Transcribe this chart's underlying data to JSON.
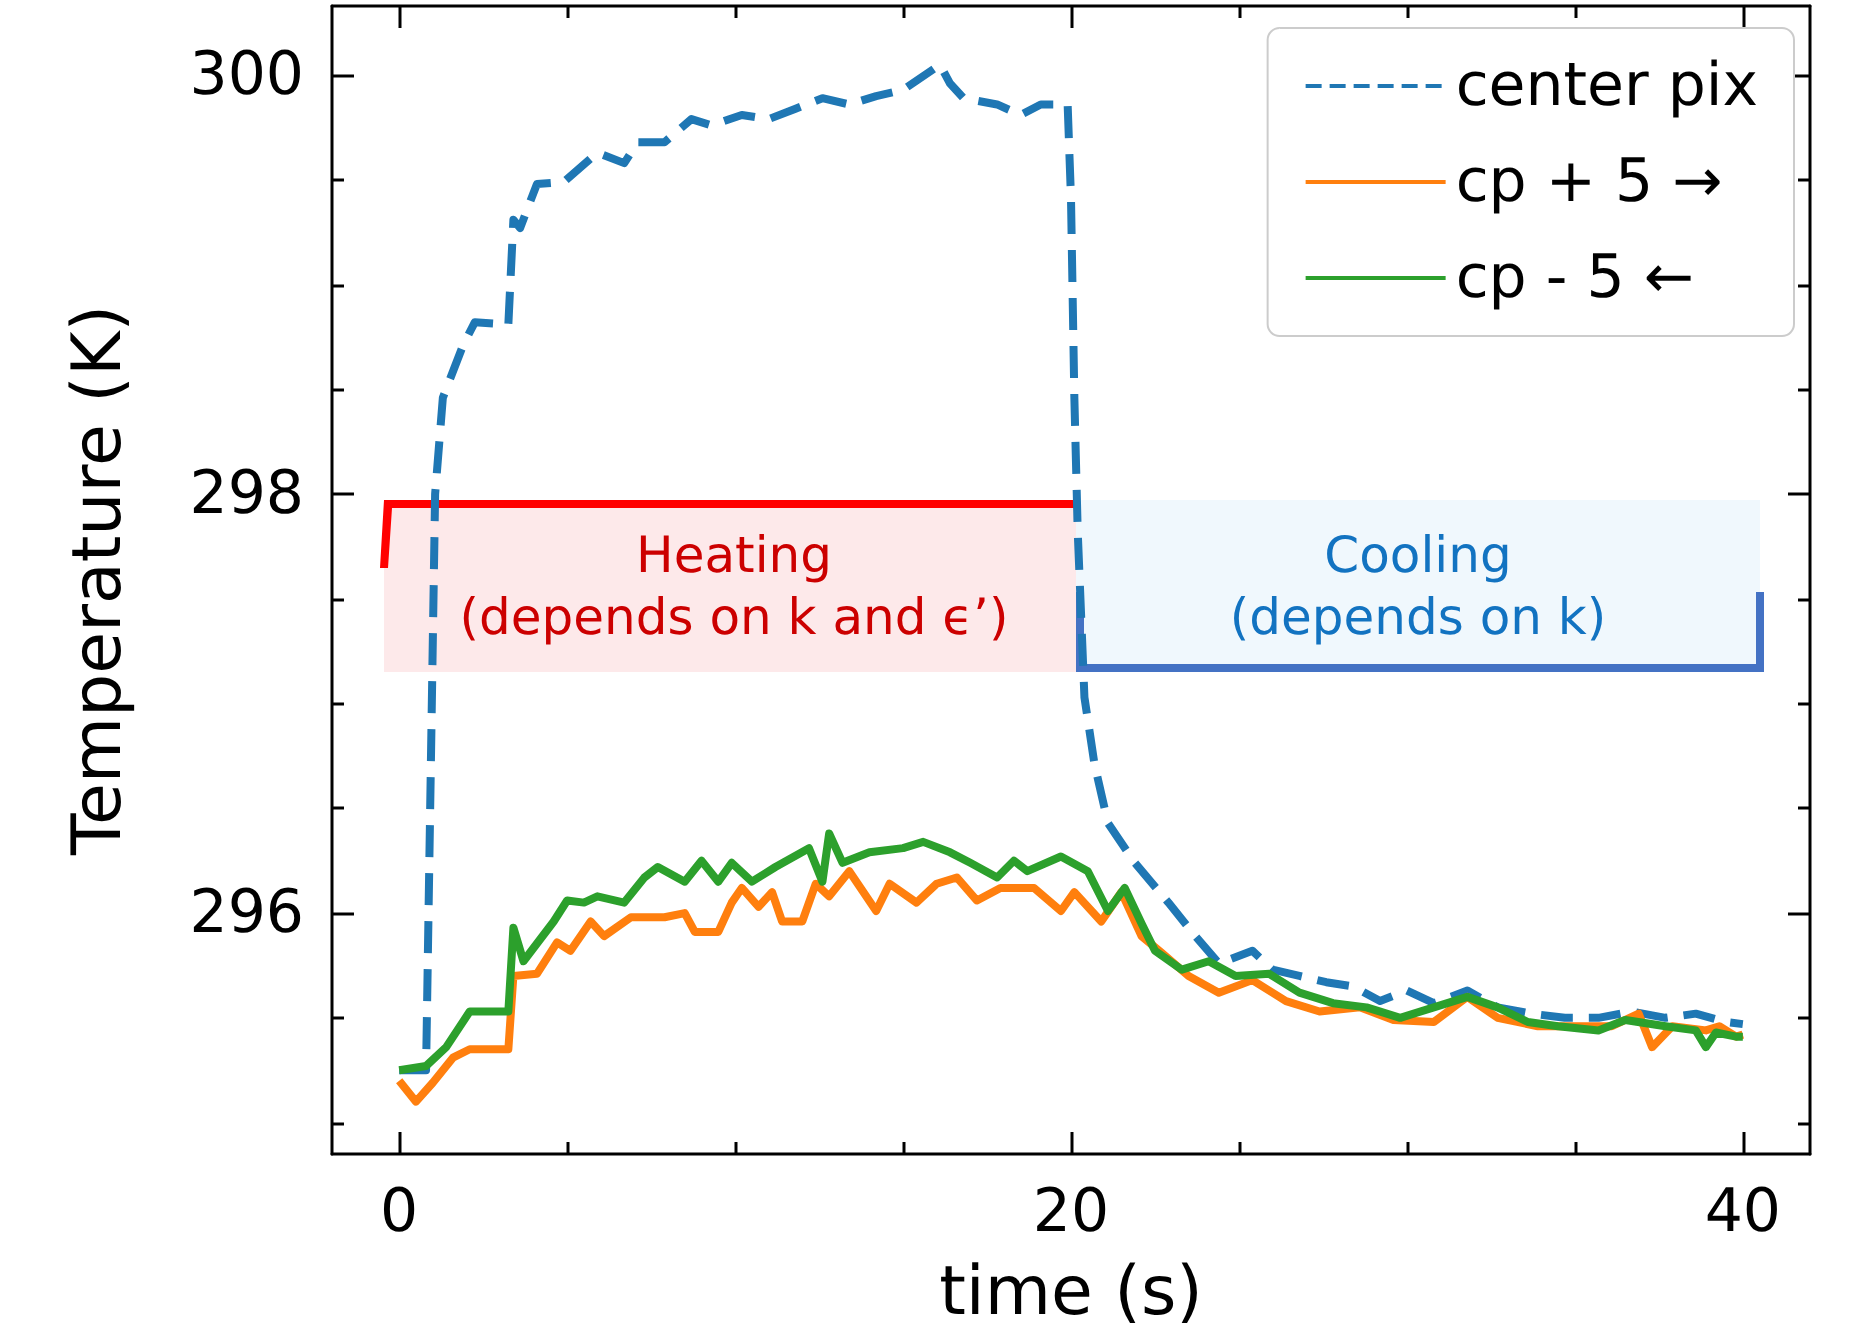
{
  "chart_data": {
    "type": "line",
    "xlabel": "time (s)",
    "ylabel": "Temperature (K)",
    "xlim": [
      -2,
      42
    ],
    "ylim": [
      294.85,
      300.33
    ],
    "xticks": [
      0,
      {
        "value": 5,
        "label": null
      },
      {
        "value": 10,
        "label": null
      },
      {
        "value": 15,
        "label": null
      },
      20,
      {
        "value": 25,
        "label": null
      },
      {
        "value": 30,
        "label": null
      },
      {
        "value": 35,
        "label": null
      },
      40
    ],
    "yticks": [
      {
        "value": 295,
        "label": null
      },
      {
        "value": 295.5,
        "label": null
      },
      296,
      {
        "value": 296.5,
        "label": null
      },
      {
        "value": 297,
        "label": null
      },
      {
        "value": 297.5,
        "label": null
      },
      298,
      {
        "value": 298.5,
        "label": null
      },
      {
        "value": 299,
        "label": null
      },
      {
        "value": 299.5,
        "label": null
      },
      300
    ],
    "grid": false,
    "legend": "top right",
    "marker": "none",
    "series": [
      {
        "name": "center pix",
        "color": "#1f77b4",
        "line_style": "dashed",
        "x": [
          0,
          0.8,
          1.07,
          1.3,
          1.9,
          2.25,
          3.25,
          3.4,
          3.6,
          4.1,
          4.9,
          5.9,
          6.7,
          7.1,
          7.9,
          8.7,
          9.3,
          10.2,
          11.0,
          11.8,
          12.6,
          13.4,
          14.2,
          15.0,
          16.1,
          16.4,
          16.8,
          17.8,
          18.5,
          19.1,
          19.9,
          20.0,
          20.1,
          20.2,
          20.4,
          20.7,
          21.1,
          21.9,
          22.9,
          23.7,
          24.4,
          25.4,
          26.0,
          26.8,
          27.6,
          28.4,
          29.2,
          30.0,
          30.8,
          31.8,
          32.7,
          33.7,
          34.7,
          35.7,
          36.7,
          37.7,
          38.6,
          39.5,
          40
        ],
        "values": [
          295.25,
          295.25,
          298.0,
          298.46,
          298.71,
          298.82,
          298.81,
          299.31,
          299.27,
          299.48,
          299.49,
          299.63,
          299.58,
          299.68,
          299.68,
          299.79,
          299.76,
          299.81,
          299.79,
          299.84,
          299.89,
          299.86,
          299.9,
          299.93,
          300.05,
          299.96,
          299.89,
          299.86,
          299.81,
          299.86,
          299.86,
          299.41,
          298.46,
          297.82,
          297.03,
          296.71,
          296.43,
          296.24,
          296.05,
          295.89,
          295.76,
          295.82,
          295.73,
          295.7,
          295.67,
          295.65,
          295.58,
          295.63,
          295.57,
          295.63,
          295.55,
          295.52,
          295.5,
          295.5,
          295.53,
          295.5,
          295.52,
          295.48,
          295.47
        ]
      },
      {
        "name": "cp + 5 →",
        "color": "#ff7f0e",
        "line_style": "solid",
        "x": [
          0,
          0.5,
          1.0,
          1.6,
          2.1,
          3.25,
          3.4,
          4.1,
          4.7,
          5.1,
          5.7,
          6.1,
          6.9,
          7.9,
          8.5,
          8.8,
          9.5,
          9.9,
          10.2,
          10.7,
          11.1,
          11.4,
          12.0,
          12.4,
          12.8,
          13.4,
          14.2,
          14.6,
          15.4,
          16.0,
          16.6,
          17.2,
          17.9,
          18.9,
          19.7,
          20.1,
          20.9,
          21.5,
          22.1,
          22.7,
          23.5,
          24.4,
          25.4,
          26.4,
          27.4,
          28.6,
          29.6,
          30.8,
          31.8,
          32.7,
          33.9,
          35.1,
          36.1,
          36.9,
          37.3,
          37.9,
          38.9,
          39.3,
          39.8,
          40
        ],
        "values": [
          295.2,
          295.1,
          295.19,
          295.31,
          295.35,
          295.35,
          295.7,
          295.71,
          295.86,
          295.82,
          295.96,
          295.89,
          295.98,
          295.98,
          296.0,
          295.91,
          295.91,
          296.05,
          296.12,
          296.03,
          296.1,
          295.96,
          295.96,
          296.14,
          296.08,
          296.2,
          296.01,
          296.14,
          296.05,
          296.14,
          296.17,
          296.06,
          296.12,
          296.12,
          296.01,
          296.1,
          295.96,
          296.1,
          295.89,
          295.81,
          295.7,
          295.62,
          295.68,
          295.58,
          295.53,
          295.55,
          295.49,
          295.48,
          295.6,
          295.5,
          295.46,
          295.46,
          295.46,
          295.52,
          295.36,
          295.46,
          295.44,
          295.46,
          295.41,
          295.42
        ]
      },
      {
        "name": "cp - 5 ←",
        "color": "#2ca02c",
        "line_style": "solid",
        "x": [
          0,
          0.8,
          1.4,
          2.1,
          3.25,
          3.4,
          3.7,
          4.6,
          5.0,
          5.5,
          5.9,
          6.7,
          7.3,
          7.7,
          8.5,
          9.0,
          9.5,
          9.9,
          10.5,
          11.2,
          12.2,
          12.6,
          12.8,
          13.2,
          14.0,
          15.0,
          15.6,
          16.4,
          17.0,
          17.8,
          18.3,
          18.7,
          19.7,
          20.5,
          21.1,
          21.6,
          22.1,
          22.5,
          23.3,
          24.1,
          24.9,
          25.9,
          26.8,
          27.8,
          28.8,
          29.8,
          30.8,
          31.8,
          32.7,
          33.6,
          34.5,
          35.7,
          36.5,
          37.7,
          38.6,
          38.9,
          39.2,
          39.8,
          40
        ],
        "values": [
          295.25,
          295.27,
          295.36,
          295.53,
          295.53,
          295.93,
          295.77,
          295.96,
          296.06,
          296.05,
          296.08,
          296.05,
          296.17,
          296.22,
          296.15,
          296.25,
          296.15,
          296.24,
          296.15,
          296.22,
          296.31,
          296.15,
          296.38,
          296.24,
          296.29,
          296.31,
          296.34,
          296.29,
          296.24,
          296.17,
          296.25,
          296.2,
          296.27,
          296.2,
          296.01,
          296.12,
          295.95,
          295.82,
          295.73,
          295.77,
          295.7,
          295.71,
          295.62,
          295.57,
          295.55,
          295.5,
          295.55,
          295.6,
          295.55,
          295.48,
          295.46,
          295.44,
          295.49,
          295.46,
          295.44,
          295.36,
          295.43,
          295.41,
          295.41
        ]
      }
    ],
    "annotations": [
      "Heating\n(depends on k and ϵ’)",
      "Cooling\n(depends on k)"
    ]
  }
}
